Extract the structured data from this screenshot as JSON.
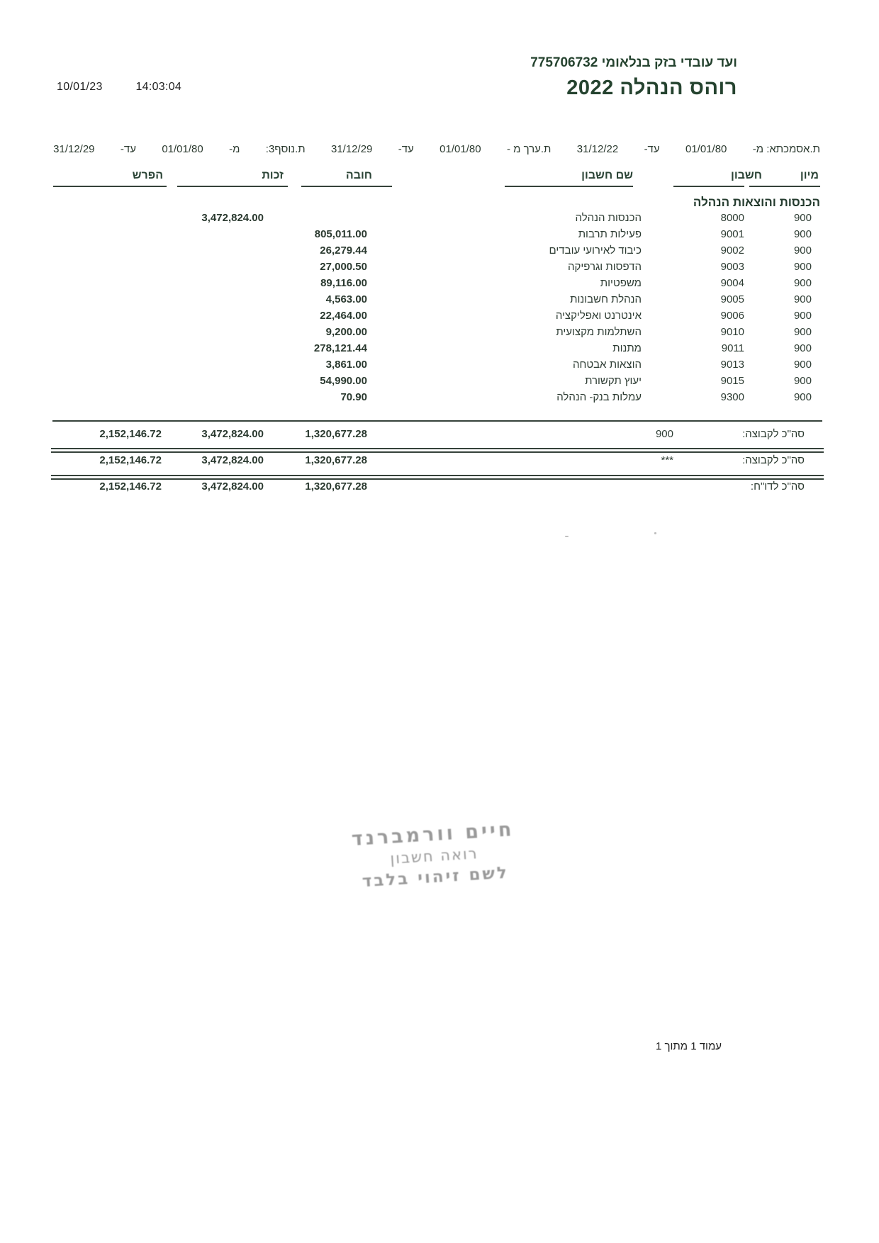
{
  "header": {
    "print_date": "10/01/23",
    "print_time": "14:03:04",
    "org_line": "ועד עובדי בזק בנלאומי 775706732",
    "report_title": "רוהס הנהלה 2022"
  },
  "filters": [
    "ת.אסמכתא: מ-",
    "01/01/80",
    "עד-",
    "31/12/22",
    "ת.ערך מ -",
    "01/01/80",
    "עד-",
    "31/12/29",
    "ת.נוסף3:",
    "מ-",
    "01/01/80",
    "עד-",
    "31/12/29"
  ],
  "table": {
    "columns": [
      "מיון",
      "חשבון",
      "שם חשבון",
      "חובה",
      "זכות",
      "הפרש"
    ],
    "section_title": "הכנסות והוצאות הנהלה",
    "rows": [
      {
        "sort": "900",
        "account": "8000",
        "name": "הכנסות הנהלה",
        "debit": "",
        "credit": "3,472,824.00",
        "diff": ""
      },
      {
        "sort": "900",
        "account": "9001",
        "name": "פעילות תרבות",
        "debit": "805,011.00",
        "credit": "",
        "diff": ""
      },
      {
        "sort": "900",
        "account": "9002",
        "name": "כיבוד לאירועי עובדים",
        "debit": "26,279.44",
        "credit": "",
        "diff": ""
      },
      {
        "sort": "900",
        "account": "9003",
        "name": "הדפסות וגרפיקה",
        "debit": "27,000.50",
        "credit": "",
        "diff": ""
      },
      {
        "sort": "900",
        "account": "9004",
        "name": "משפטיות",
        "debit": "89,116.00",
        "credit": "",
        "diff": ""
      },
      {
        "sort": "900",
        "account": "9005",
        "name": "הנהלת חשבונות",
        "debit": "4,563.00",
        "credit": "",
        "diff": ""
      },
      {
        "sort": "900",
        "account": "9006",
        "name": "אינטרנט ואפליקציה",
        "debit": "22,464.00",
        "credit": "",
        "diff": ""
      },
      {
        "sort": "900",
        "account": "9010",
        "name": "השתלמות מקצועית",
        "debit": "9,200.00",
        "credit": "",
        "diff": ""
      },
      {
        "sort": "900",
        "account": "9011",
        "name": "מתנות",
        "debit": "278,121.44",
        "credit": "",
        "diff": ""
      },
      {
        "sort": "900",
        "account": "9013",
        "name": "הוצאות אבטחה",
        "debit": "3,861.00",
        "credit": "",
        "diff": ""
      },
      {
        "sort": "900",
        "account": "9015",
        "name": "יעוץ תקשורת",
        "debit": "54,990.00",
        "credit": "",
        "diff": ""
      },
      {
        "sort": "900",
        "account": "9300",
        "name": "עמלות בנק- הנהלה",
        "debit": "70.90",
        "credit": "",
        "diff": ""
      }
    ],
    "totals": [
      {
        "label": "סה\"כ לקבוצה:",
        "group": "900",
        "debit": "1,320,677.28",
        "credit": "3,472,824.00",
        "diff": "2,152,146.72"
      },
      {
        "label": "סה\"כ לקבוצה:",
        "group": "***",
        "debit": "1,320,677.28",
        "credit": "3,472,824.00",
        "diff": "2,152,146.72"
      },
      {
        "label": "סה\"כ לדו\"ח:",
        "group": "",
        "debit": "1,320,677.28",
        "credit": "3,472,824.00",
        "diff": "2,152,146.72"
      }
    ]
  },
  "stamp": {
    "line1": "חיים וורמברנד",
    "line2": "רואה חשבון",
    "line3": "לשם זיהוי בלבד"
  },
  "footer": {
    "page_label": "עמוד 1 מתוך 1"
  },
  "colors": {
    "ink": "#2d3c33",
    "title_green": "#25432f",
    "line": "#35423a",
    "stamp_gray": "#8f8f8f"
  }
}
